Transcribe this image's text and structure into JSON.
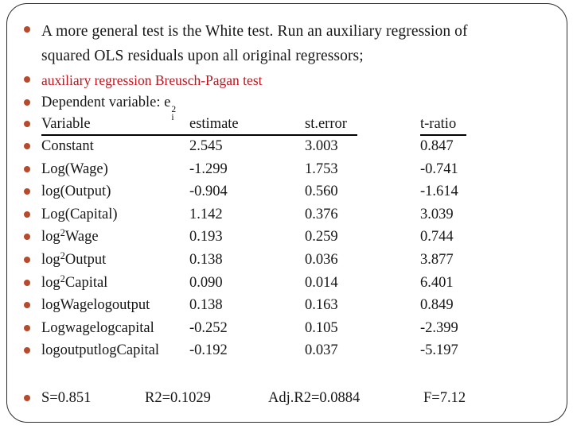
{
  "slide": {
    "colors": {
      "bullet": "#B74A2A",
      "red_text": "#BE141E",
      "body_text": "#161616",
      "frame_border": "#2e2e2e",
      "background": "#ffffff"
    },
    "intro": {
      "line1": "A more general test is the White test. Run an auxiliary regression of",
      "line2": "squared OLS residuals upon all original regressors;"
    },
    "subtitle_red": "auxiliary regression Breusch-Pagan test",
    "dependent_variable": {
      "prefix": "Dependent variable: e",
      "sup": "2",
      "sub": "i"
    },
    "table": {
      "headers": [
        "Variable",
        "estimate",
        "st.error",
        "t-ratio"
      ],
      "rows": [
        {
          "label": "Constant",
          "estimate": "2.545",
          "st_error": "3.003",
          "t_ratio": "0.847"
        },
        {
          "label": "Log(Wage)",
          "estimate": "-1.299",
          "st_error": "1.753",
          "t_ratio": "-0.741"
        },
        {
          "label": "log(Output)",
          "estimate": "-0.904",
          "st_error": "0.560",
          "t_ratio": "-1.614"
        },
        {
          "label": "Log(Capital)",
          "estimate": "1.142",
          "st_error": "0.376",
          "t_ratio": "3.039"
        },
        {
          "pre": "log",
          "sup": "2",
          "post": "Wage",
          "estimate": "0.193",
          "st_error": "0.259",
          "t_ratio": "0.744"
        },
        {
          "pre": "log",
          "sup": "2",
          "post": "Output",
          "estimate": "0.138",
          "st_error": "0.036",
          "t_ratio": "3.877"
        },
        {
          "pre": "log",
          "sup": "2",
          "post": "Capital",
          "estimate": "0.090",
          "st_error": "0.014",
          "t_ratio": "6.401"
        },
        {
          "label": "logWagelogoutput",
          "estimate": "0.138",
          "st_error": "0.163",
          "t_ratio": "0.849"
        },
        {
          "label": "Logwagelogcapital",
          "estimate": "-0.252",
          "st_error": "0.105",
          "t_ratio": "-2.399"
        },
        {
          "label": "logoutputlogCapital",
          "estimate": "-0.192",
          "st_error": "0.037",
          "t_ratio": "-5.197"
        }
      ]
    },
    "summary": [
      "S=0.851",
      "R2=0.1029",
      "Adj.R2=0.0884",
      "F=7.12"
    ]
  }
}
